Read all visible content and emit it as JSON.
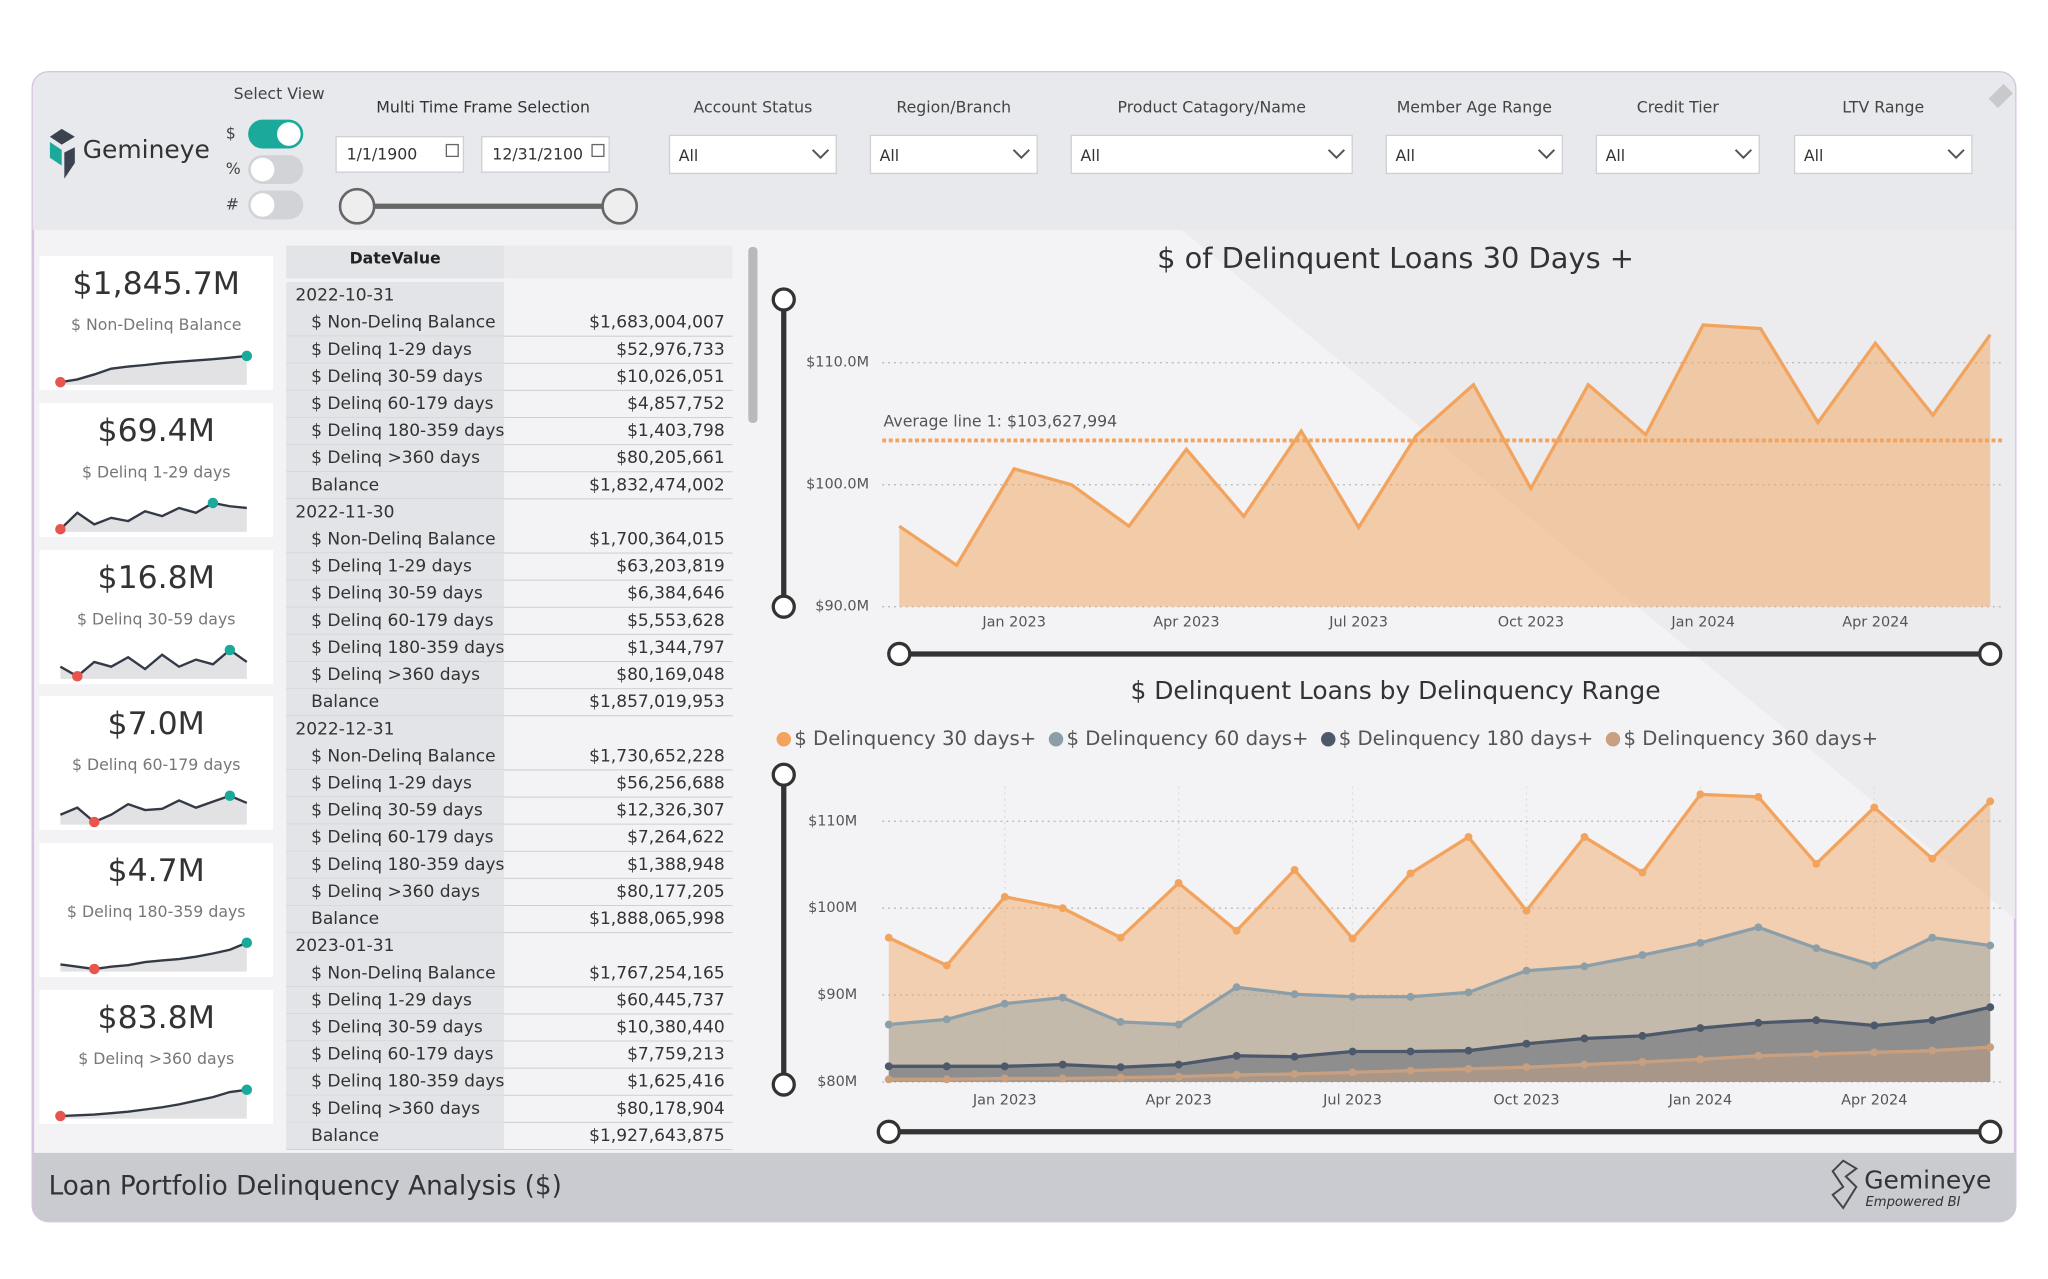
{
  "header": {
    "logo": "Gemineye",
    "select_view": {
      "label": "Select View",
      "options": [
        "$",
        "%",
        "#"
      ],
      "selected": 0
    },
    "time_frame": {
      "label": "Multi Time Frame Selection",
      "start": "1/1/1900",
      "end": "12/31/2100"
    },
    "filters": [
      {
        "label": "Account Status",
        "value": "All"
      },
      {
        "label": "Region/Branch",
        "value": "All"
      },
      {
        "label": "Product Catagory/Name",
        "value": "All"
      },
      {
        "label": "Member Age Range",
        "value": "All"
      },
      {
        "label": "Credit Tier",
        "value": "All"
      },
      {
        "label": "LTV Range",
        "value": "All"
      }
    ]
  },
  "kpis": [
    {
      "value": "$1,845.7M",
      "label": "$ Non-Delinq Balance",
      "trend": [
        1683,
        1700,
        1731,
        1767,
        1780,
        1790,
        1802,
        1810,
        1818,
        1826,
        1835,
        1846
      ]
    },
    {
      "value": "$69.4M",
      "label": "$ Delinq 1-29 days",
      "trend": [
        53,
        63,
        56,
        60,
        58,
        64,
        61,
        66,
        63,
        69,
        67,
        66
      ]
    },
    {
      "value": "$16.8M",
      "label": "$ Delinq 30-59 days",
      "trend": [
        10,
        6,
        12,
        10,
        14,
        9,
        15,
        10,
        13,
        11,
        17,
        12
      ]
    },
    {
      "value": "$7.0M",
      "label": "$ Delinq 60-179 days",
      "trend": [
        6.0,
        6.6,
        5.4,
        6.0,
        6.9,
        6.4,
        6.5,
        7.2,
        6.6,
        7.1,
        7.6,
        7.0
      ]
    },
    {
      "value": "$4.7M",
      "label": "$ Delinq 180-359 days",
      "trend": [
        1.9,
        1.6,
        1.3,
        1.6,
        1.8,
        2.2,
        2.4,
        2.6,
        2.9,
        3.3,
        3.8,
        4.7
      ]
    },
    {
      "value": "$83.8M",
      "label": "$ Delinq >360 days",
      "trend": [
        80.2,
        80.3,
        80.4,
        80.6,
        80.8,
        81.1,
        81.4,
        81.8,
        82.3,
        82.8,
        83.5,
        83.8
      ]
    }
  ],
  "table": {
    "header": "DateValue",
    "groups": [
      {
        "date": "2022-10-31",
        "rows": [
          [
            "$ Non-Delinq Balance",
            "$1,683,004,007"
          ],
          [
            "$ Delinq 1-29 days",
            "$52,976,733"
          ],
          [
            "$ Delinq 30-59 days",
            "$10,026,051"
          ],
          [
            "$ Delinq 60-179 days",
            "$4,857,752"
          ],
          [
            "$ Delinq 180-359 days",
            "$1,403,798"
          ],
          [
            "$ Delinq >360 days",
            "$80,205,661"
          ],
          [
            "Balance",
            "$1,832,474,002"
          ]
        ]
      },
      {
        "date": "2022-11-30",
        "rows": [
          [
            "$ Non-Delinq Balance",
            "$1,700,364,015"
          ],
          [
            "$ Delinq 1-29 days",
            "$63,203,819"
          ],
          [
            "$ Delinq 30-59 days",
            "$6,384,646"
          ],
          [
            "$ Delinq 60-179 days",
            "$5,553,628"
          ],
          [
            "$ Delinq 180-359 days",
            "$1,344,797"
          ],
          [
            "$ Delinq >360 days",
            "$80,169,048"
          ],
          [
            "Balance",
            "$1,857,019,953"
          ]
        ]
      },
      {
        "date": "2022-12-31",
        "rows": [
          [
            "$ Non-Delinq Balance",
            "$1,730,652,228"
          ],
          [
            "$ Delinq 1-29 days",
            "$56,256,688"
          ],
          [
            "$ Delinq 30-59 days",
            "$12,326,307"
          ],
          [
            "$ Delinq 60-179 days",
            "$7,264,622"
          ],
          [
            "$ Delinq 180-359 days",
            "$1,388,948"
          ],
          [
            "$ Delinq >360 days",
            "$80,177,205"
          ],
          [
            "Balance",
            "$1,888,065,998"
          ]
        ]
      },
      {
        "date": "2023-01-31",
        "rows": [
          [
            "$ Non-Delinq Balance",
            "$1,767,254,165"
          ],
          [
            "$ Delinq 1-29 days",
            "$60,445,737"
          ],
          [
            "$ Delinq 30-59 days",
            "$10,380,440"
          ],
          [
            "$ Delinq 60-179 days",
            "$7,759,213"
          ],
          [
            "$ Delinq 180-359 days",
            "$1,625,416"
          ],
          [
            "$ Delinq >360 days",
            "$80,178,904"
          ],
          [
            "Balance",
            "$1,927,643,875"
          ]
        ]
      }
    ]
  },
  "chart_data": [
    {
      "type": "area",
      "title": "$ of Delinquent Loans 30 Days +",
      "categories": [
        null,
        null,
        "Jan 2023",
        null,
        null,
        "Apr 2023",
        null,
        null,
        "Jul 2023",
        null,
        null,
        "Oct 2023",
        null,
        null,
        "Jan 2024",
        null,
        null,
        "Apr 2024",
        null,
        null
      ],
      "series": [
        {
          "name": "$ Delinquency 30 days+",
          "color": "#f2a45e",
          "values": [
            96600000,
            93400000,
            101300000,
            100000000,
            96600000,
            102900000,
            97400000,
            104400000,
            96500000,
            104000000,
            108200000,
            99700000,
            108200000,
            104100000,
            113100000,
            112800000,
            105100000,
            111600000,
            105700000,
            112300000
          ]
        }
      ],
      "ylim": [
        90000000,
        114000000
      ],
      "yticks": [
        {
          "value": 90000000,
          "label": "$90.0M"
        },
        {
          "value": 100000000,
          "label": "$100.0M"
        },
        {
          "value": 110000000,
          "label": "$110.0M"
        }
      ],
      "average_line": {
        "label": "Average line 1: $103,627,994",
        "value": 103627994
      },
      "grid": true,
      "markers": false
    },
    {
      "type": "area",
      "title": "$ Delinquent Loans by Delinquency Range",
      "categories": [
        null,
        null,
        "Jan 2023",
        null,
        null,
        "Apr 2023",
        null,
        null,
        "Jul 2023",
        null,
        null,
        "Oct 2023",
        null,
        null,
        "Jan 2024",
        null,
        null,
        "Apr 2024",
        null,
        null
      ],
      "series": [
        {
          "name": "$ Delinquency 30 days+",
          "color": "#f2a45e",
          "values": [
            96600000,
            93400000,
            101300000,
            100000000,
            96600000,
            102900000,
            97400000,
            104400000,
            96500000,
            104000000,
            108200000,
            99700000,
            108200000,
            104100000,
            113100000,
            112800000,
            105100000,
            111600000,
            105700000,
            112300000
          ]
        },
        {
          "name": "$ Delinquency 60 days+",
          "color": "#8c9fa9",
          "values": [
            86600000,
            87200000,
            89000000,
            89700000,
            86900000,
            86600000,
            90900000,
            90100000,
            89800000,
            89800000,
            90300000,
            92800000,
            93300000,
            94600000,
            96000000,
            97800000,
            95400000,
            93400000,
            96600000,
            95700000
          ]
        },
        {
          "name": "$ Delinquency 180 days+",
          "color": "#4d596b",
          "values": [
            81800000,
            81800000,
            81800000,
            82000000,
            81700000,
            82000000,
            83000000,
            82900000,
            83500000,
            83500000,
            83600000,
            84400000,
            85000000,
            85300000,
            86200000,
            86800000,
            87100000,
            86500000,
            87100000,
            88600000
          ]
        },
        {
          "name": "$ Delinquency 360 days+",
          "color": "#c8a080",
          "values": [
            80300000,
            80300000,
            80400000,
            80400000,
            80500000,
            80600000,
            80800000,
            80900000,
            81100000,
            81300000,
            81500000,
            81700000,
            82000000,
            82300000,
            82600000,
            83000000,
            83200000,
            83400000,
            83600000,
            84000000
          ]
        }
      ],
      "ylim": [
        80000000,
        114000000
      ],
      "yticks": [
        {
          "value": 80000000,
          "label": "$80M"
        },
        {
          "value": 90000000,
          "label": "$90M"
        },
        {
          "value": 100000000,
          "label": "$100M"
        },
        {
          "value": 110000000,
          "label": "$110M"
        }
      ],
      "legend": "top-left",
      "grid": true,
      "markers": true
    }
  ],
  "footer": {
    "title": "Loan Portfolio Delinquency Analysis ($)",
    "logo": "Gemineye",
    "tagline": "Empowered BI"
  }
}
